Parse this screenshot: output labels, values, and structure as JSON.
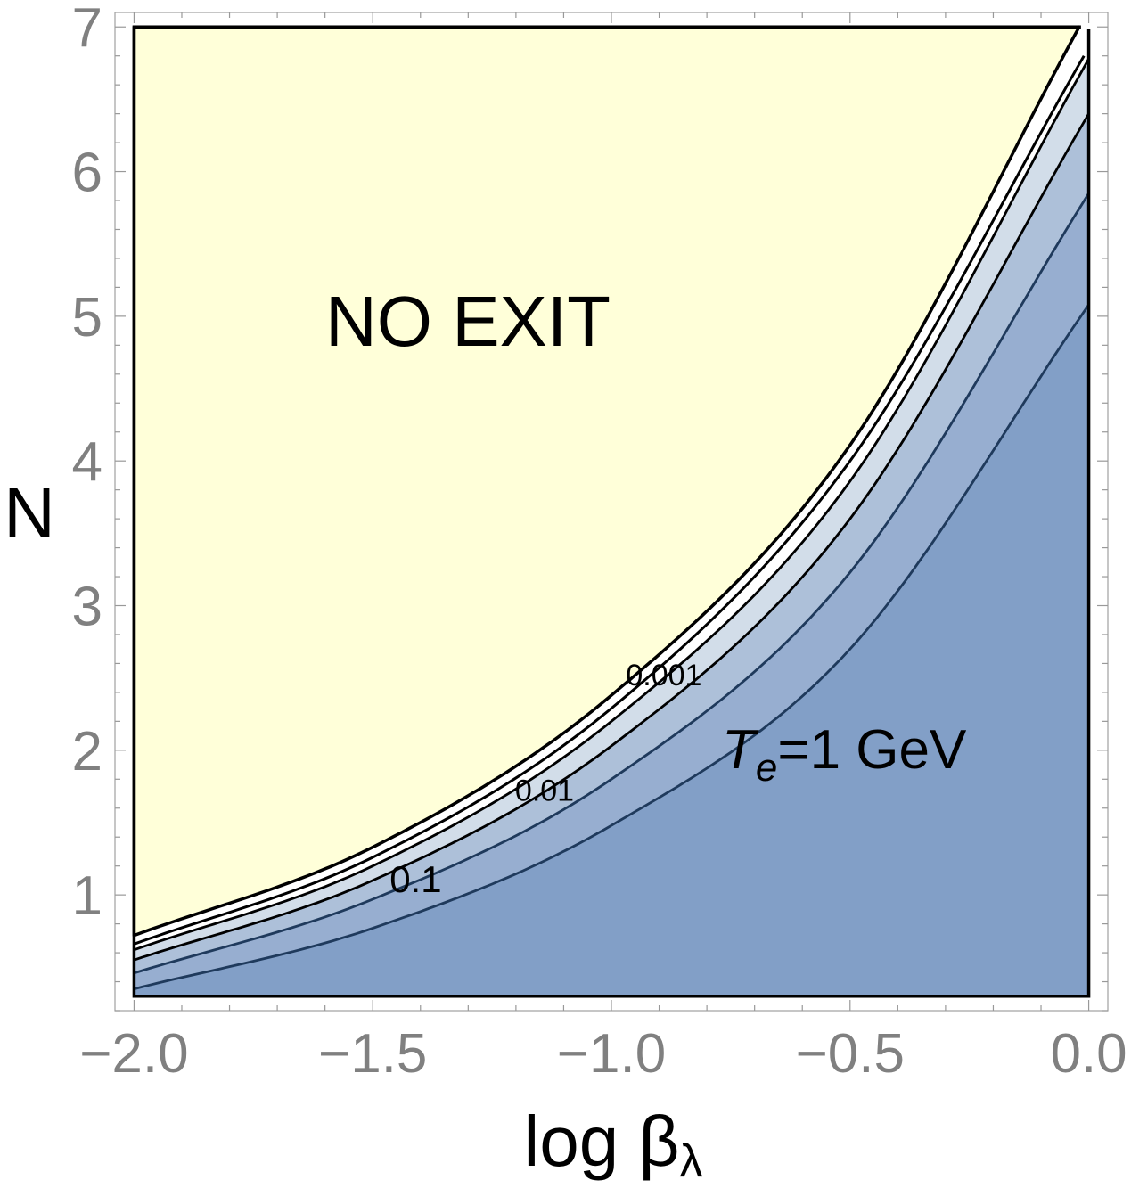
{
  "chart_data": {
    "type": "contour",
    "xlabel": "log β",
    "xlabel_sub": "λ",
    "ylabel": "N",
    "xlim": [
      -2.04,
      0.04
    ],
    "ylim": [
      0.2,
      7.1
    ],
    "xticks": [
      -2.0,
      -1.5,
      -1.0,
      -0.5,
      0.0
    ],
    "xtick_labels": [
      "−2.0",
      "−1.5",
      "−1.0",
      "−0.5",
      "0.0"
    ],
    "yticks": [
      1,
      2,
      3,
      4,
      5,
      6,
      7
    ],
    "ytick_labels": [
      "1",
      "2",
      "3",
      "4",
      "5",
      "6",
      "7"
    ],
    "grid": false,
    "region_labels": {
      "no_exit": "NO EXIT",
      "temperature_var": "T",
      "temperature_sub": "e",
      "temperature_rest": "=1 GeV"
    },
    "frame": {
      "x": [
        -2.0,
        0.0
      ],
      "y": [
        0.3,
        7.0
      ]
    },
    "no_exit_boundary": {
      "x": [
        -2.0,
        -1.5,
        -1.0,
        -0.5,
        -0.02
      ],
      "y": [
        0.72,
        1.33,
        2.38,
        4.11,
        7.0
      ]
    },
    "white_band_edge": {
      "x": [
        -2.0,
        -1.5,
        -1.0,
        -0.5,
        -0.01
      ],
      "y": [
        0.66,
        1.26,
        2.29,
        4.0,
        6.8
      ]
    },
    "contours": [
      {
        "label": "0.001",
        "color": "#000000",
        "x": [
          -2.0,
          -1.5,
          -1.0,
          -0.5,
          0.0
        ],
        "y": [
          0.62,
          1.2,
          2.2,
          3.86,
          6.78
        ]
      },
      {
        "label": "0.01",
        "color": "#000000",
        "x": [
          -2.0,
          -1.5,
          -1.0,
          -0.5,
          0.0
        ],
        "y": [
          0.55,
          1.1,
          2.03,
          3.6,
          6.4
        ]
      },
      {
        "label": "0.1",
        "color": "#1f3a5c",
        "x": [
          -2.0,
          -1.5,
          -1.0,
          -0.5,
          0.0
        ],
        "y": [
          0.46,
          0.97,
          1.8,
          3.23,
          5.85
        ]
      },
      {
        "label": "",
        "color": "#1f3a5c",
        "x": [
          -2.0,
          -1.5,
          -1.0,
          -0.5,
          0.0
        ],
        "y": [
          0.35,
          0.77,
          1.48,
          2.7,
          5.08
        ]
      }
    ],
    "contour_label_positions": [
      {
        "text": "0.001",
        "x": -0.89,
        "y": 2.45
      },
      {
        "text": "0.01",
        "x": -1.14,
        "y": 1.65
      },
      {
        "text": "0.1",
        "x": -1.41,
        "y": 1.02
      }
    ],
    "colors": {
      "no_exit": "#ffffd9",
      "band_white": "#ffffff",
      "band_1": "#d2dde9",
      "band_2": "#adc0d9",
      "band_3": "#97aed0",
      "band_4": "#829fc7",
      "frame_border": "#a0a0a0"
    }
  }
}
